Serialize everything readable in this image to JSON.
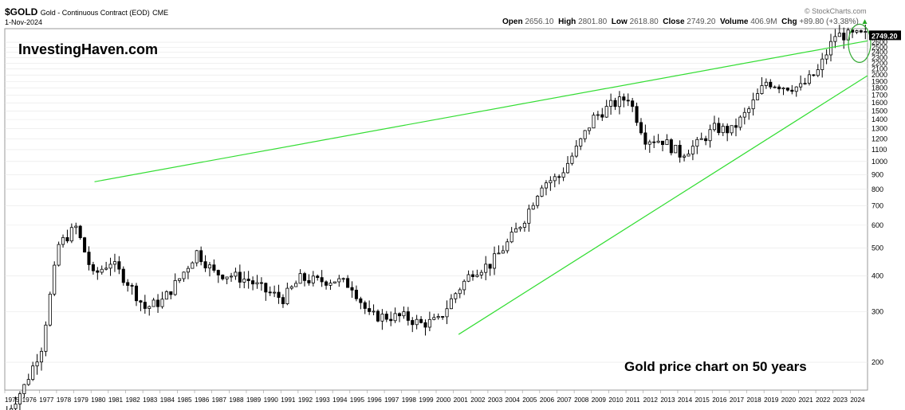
{
  "header": {
    "symbol": "$GOLD",
    "description": "Gold - Continuous Contract (EOD)",
    "exchange": "CME",
    "date": "1-Nov-2024",
    "copyright": "© StockCharts.com",
    "open_label": "Open",
    "open": "2656.10",
    "high_label": "High",
    "high": "2801.80",
    "low_label": "Low",
    "low": "2618.80",
    "close_label": "Close",
    "close": "2749.20",
    "volume_label": "Volume",
    "volume": "406.9M",
    "chg_label": "Chg",
    "chg": "+89.80 (+3.38%)",
    "chg_arrow": "▲"
  },
  "watermarks": {
    "brand": "InvestingHaven.com",
    "caption": "Gold price chart on 50 years"
  },
  "colors": {
    "trendline": "#33dd33",
    "candle": "#000000",
    "grid": "#e6e6e6",
    "last_price_box": "#000000",
    "circle": "#33aa33"
  },
  "chart_data": {
    "type": "candlestick",
    "title": "$GOLD Gold - Continuous Contract (EOD) CME",
    "y_scale": "log",
    "ylim": [
      160,
      2900
    ],
    "y_ticks": [
      200,
      300,
      400,
      500,
      600,
      700,
      800,
      900,
      1000,
      1100,
      1200,
      1300,
      1400,
      1500,
      1600,
      1700,
      1800,
      1900,
      2000,
      2100,
      2200,
      2300,
      2400,
      2500,
      2600
    ],
    "x_ticks": [
      "1975",
      "1976",
      "1977",
      "1978",
      "1979",
      "1980",
      "1981",
      "1982",
      "1983",
      "1984",
      "1985",
      "1986",
      "1987",
      "1988",
      "1989",
      "1990",
      "1991",
      "1992",
      "1993",
      "1994",
      "1995",
      "1996",
      "1997",
      "1998",
      "1999",
      "2000",
      "2001",
      "2002",
      "2003",
      "2004",
      "2005",
      "2006",
      "2007",
      "2008",
      "2009",
      "2010",
      "2011",
      "2012",
      "2013",
      "2014",
      "2015",
      "2016",
      "2017",
      "2018",
      "2019",
      "2020",
      "2021",
      "2022",
      "2023",
      "2024"
    ],
    "last_price_label": "2749.20",
    "resistance_line": {
      "from": [
        "1980",
        850
      ],
      "to": [
        "2024",
        2630
      ]
    },
    "support_line": {
      "from": [
        "2001",
        250
      ],
      "to": [
        "2025",
        1990
      ]
    },
    "annual_closes": {
      "years": [
        1975,
        1976,
        1977,
        1978,
        1979,
        1980,
        1981,
        1982,
        1983,
        1984,
        1985,
        1986,
        1987,
        1988,
        1989,
        1990,
        1991,
        1992,
        1993,
        1994,
        1995,
        1996,
        1997,
        1998,
        1999,
        2000,
        2001,
        2002,
        2003,
        2004,
        2005,
        2006,
        2007,
        2008,
        2009,
        2010,
        2011,
        2012,
        2013,
        2014,
        2015,
        2016,
        2017,
        2018,
        2019,
        2020,
        2021,
        2022,
        2023,
        2024
      ],
      "close": [
        140,
        134,
        165,
        226,
        512,
        590,
        400,
        448,
        380,
        309,
        327,
        391,
        484,
        410,
        401,
        386,
        353,
        333,
        391,
        383,
        387,
        369,
        290,
        288,
        288,
        272,
        279,
        348,
        416,
        438,
        519,
        635,
        838,
        884,
        1104,
        1421,
        1566,
        1675,
        1202,
        1184,
        1061,
        1146,
        1303,
        1282,
        1517,
        1893,
        1829,
        1812,
        2062,
        2749
      ]
    }
  }
}
